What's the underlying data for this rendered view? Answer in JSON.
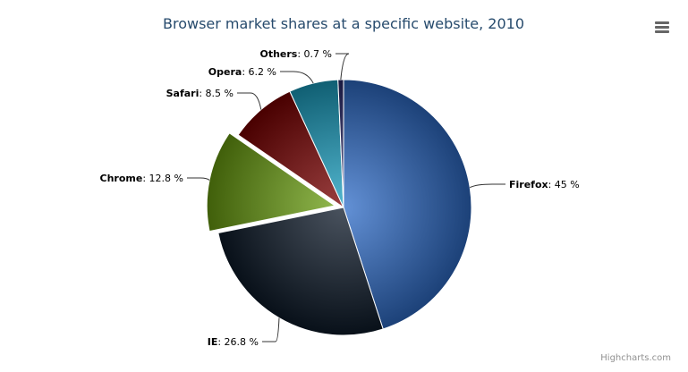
{
  "chart_data": {
    "type": "pie",
    "title": "Browser market shares at a specific website, 2010",
    "value_suffix": " %",
    "slices": [
      {
        "name": "Firefox",
        "value": 45,
        "color": "#2f6cc8",
        "sliced": false
      },
      {
        "name": "IE",
        "value": 26.8,
        "color": "#0d1a2a",
        "sliced": false
      },
      {
        "name": "Chrome",
        "value": 12.8,
        "color": "#6a9e10",
        "sliced": true
      },
      {
        "name": "Safari",
        "value": 8.5,
        "color": "#7a0000",
        "sliced": false
      },
      {
        "name": "Opera",
        "value": 6.2,
        "color": "#1a9fc0",
        "sliced": false
      },
      {
        "name": "Others",
        "value": 0.7,
        "color": "#2a2a6a",
        "sliced": false
      }
    ]
  },
  "menu_icon": "hamburger-menu-icon",
  "credits": "Highcharts.com"
}
